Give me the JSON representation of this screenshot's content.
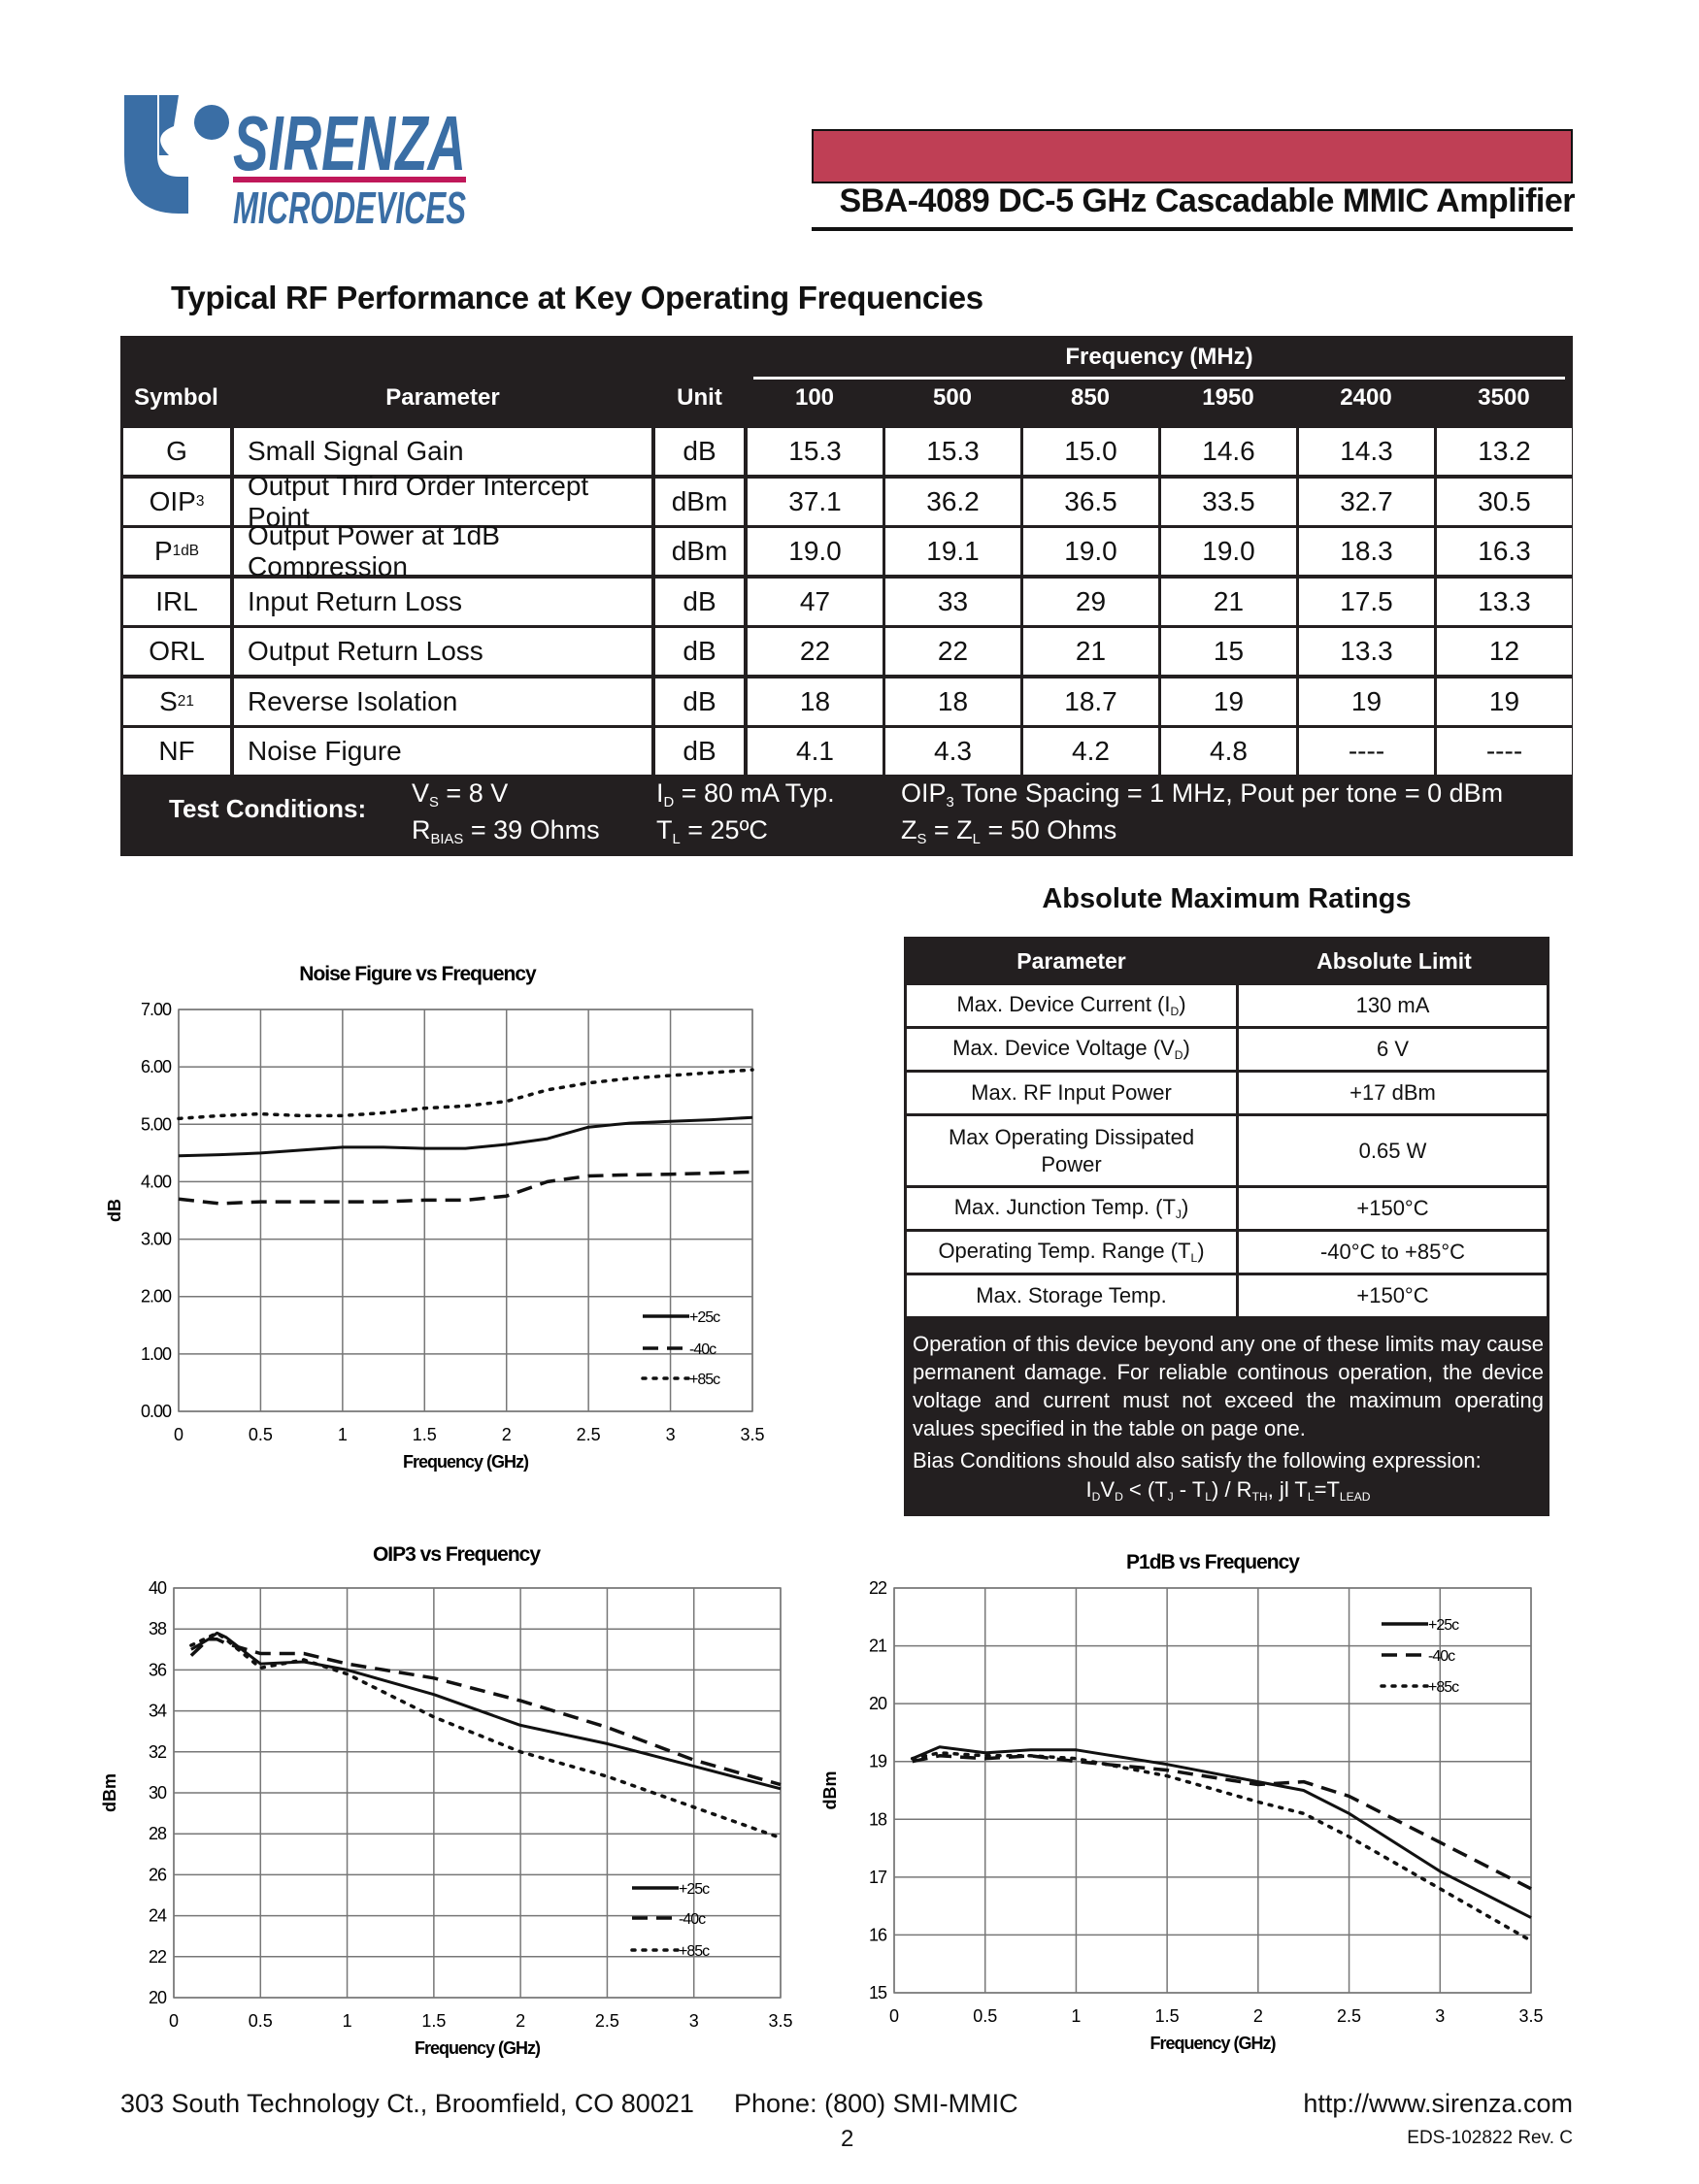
{
  "logo": {
    "line1": "SIRENZA",
    "line2": "MICRODEVICES",
    "colors": {
      "blue": "#3a6ea5",
      "accent": "#c0185a"
    }
  },
  "header": {
    "title": "SBA-4089 DC-5 GHz Cascadable MMIC Amplifier",
    "bar_color": "#bf3f55"
  },
  "rf": {
    "section_title": "Typical RF Performance at Key Operating Frequencies",
    "freq_group": "Frequency (MHz)",
    "headers": {
      "symbol": "Symbol",
      "parameter": "Parameter",
      "unit": "Unit"
    },
    "frequencies": [
      "100",
      "500",
      "850",
      "1950",
      "2400",
      "3500"
    ],
    "rows": [
      {
        "sym": "G",
        "sub": "",
        "param": "Small Signal Gain",
        "unit": "dB",
        "values": [
          "15.3",
          "15.3",
          "15.0",
          "14.6",
          "14.3",
          "13.2"
        ]
      },
      {
        "sym": "OIP",
        "sub": "3",
        "param": "Output Third Order Intercept Point",
        "unit": "dBm",
        "values": [
          "37.1",
          "36.2",
          "36.5",
          "33.5",
          "32.7",
          "30.5"
        ]
      },
      {
        "sym": "P",
        "sub": "1dB",
        "param": "Output Power at 1dB Compression",
        "unit": "dBm",
        "values": [
          "19.0",
          "19.1",
          "19.0",
          "19.0",
          "18.3",
          "16.3"
        ]
      },
      {
        "sym": "IRL",
        "sub": "",
        "param": "Input Return Loss",
        "unit": "dB",
        "values": [
          "47",
          "33",
          "29",
          "21",
          "17.5",
          "13.3"
        ]
      },
      {
        "sym": "ORL",
        "sub": "",
        "param": "Output Return Loss",
        "unit": "dB",
        "values": [
          "22",
          "22",
          "21",
          "15",
          "13.3",
          "12"
        ]
      },
      {
        "sym": "S",
        "sub": "21",
        "param": "Reverse Isolation",
        "unit": "dB",
        "values": [
          "18",
          "18",
          "18.7",
          "19",
          "19",
          "19"
        ]
      },
      {
        "sym": "NF",
        "sub": "",
        "param": "Noise Figure",
        "unit": "dB",
        "values": [
          "4.1",
          "4.3",
          "4.2",
          "4.8",
          "----",
          "----"
        ]
      }
    ],
    "test_conditions": {
      "label": "Test Conditions:",
      "items": [
        [
          {
            "t": "V"
          },
          {
            "t": "S",
            "sub": true
          },
          {
            "t": " = 8 V"
          }
        ],
        [
          {
            "t": "R"
          },
          {
            "t": "BIAS",
            "sub": true
          },
          {
            "t": " = 39 Ohms"
          }
        ],
        [
          {
            "t": "I"
          },
          {
            "t": "D",
            "sub": true
          },
          {
            "t": " = 80 mA  Typ."
          }
        ],
        [
          {
            "t": "T"
          },
          {
            "t": "L",
            "sub": true
          },
          {
            "t": " = 25ºC"
          }
        ],
        [
          {
            "t": "OIP"
          },
          {
            "t": "3",
            "sub": true
          },
          {
            "t": " Tone Spacing = 1 MHz,  Pout per tone = 0 dBm"
          }
        ],
        [
          {
            "t": "Z"
          },
          {
            "t": "S",
            "sub": true
          },
          {
            "t": " = Z"
          },
          {
            "t": "L",
            "sub": true
          },
          {
            "t": " = 50 Ohms"
          }
        ]
      ]
    }
  },
  "abs_max": {
    "title": "Absolute Maximum Ratings",
    "headers": [
      "Parameter",
      "Absolute Limit"
    ],
    "rows": [
      {
        "param": [
          {
            "t": "Max. Device Current (I"
          },
          {
            "t": "D",
            "sub": true
          },
          {
            "t": ")"
          }
        ],
        "limit": "130 mA"
      },
      {
        "param": [
          {
            "t": "Max. Device Voltage (V"
          },
          {
            "t": "D",
            "sub": true
          },
          {
            "t": ")"
          }
        ],
        "limit": "6 V"
      },
      {
        "param": [
          {
            "t": "Max. RF Input Power"
          }
        ],
        "limit": "+17 dBm"
      },
      {
        "param": [
          {
            "t": "Max Operating Dissipated Power"
          }
        ],
        "limit": "0.65 W"
      },
      {
        "param": [
          {
            "t": "Max. Junction Temp. (T"
          },
          {
            "t": "J",
            "sub": true
          },
          {
            "t": ")"
          }
        ],
        "limit": "+150°C"
      },
      {
        "param": [
          {
            "t": "Operating Temp. Range (T"
          },
          {
            "t": "L",
            "sub": true
          },
          {
            "t": ")"
          }
        ],
        "limit": "-40°C to +85°C"
      },
      {
        "param": [
          {
            "t": "Max. Storage Temp."
          }
        ],
        "limit": "+150°C"
      }
    ],
    "note": "Operation of this device beyond any one of these limits may cause permanent damage.  For reliable continous operation, the device voltage and current must not exceed the maximum operating values specified in the table on page one.",
    "bias_text": "Bias Conditions should also satisfy the following expression:",
    "bias_expr": [
      {
        "t": "I"
      },
      {
        "t": "D",
        "sub": true
      },
      {
        "t": "V"
      },
      {
        "t": "D",
        "sub": true
      },
      {
        "t": " < (T"
      },
      {
        "t": "J",
        "sub": true
      },
      {
        "t": " - T"
      },
      {
        "t": "L",
        "sub": true
      },
      {
        "t": ") / R"
      },
      {
        "t": "TH",
        "sub": true
      },
      {
        "t": ", jl          T"
      },
      {
        "t": "L",
        "sub": true
      },
      {
        "t": "=T"
      },
      {
        "t": "LEAD",
        "sub": true
      }
    ]
  },
  "chart_data": [
    {
      "id": "nf",
      "type": "line",
      "title": "Noise Figure vs Frequency",
      "xlabel": "Frequency (GHz)",
      "ylabel": "dB",
      "xlim": [
        0,
        3.5
      ],
      "ylim": [
        0,
        7
      ],
      "xticks": [
        "0",
        "0.5",
        "1",
        "1.5",
        "2",
        "2.5",
        "3",
        "3.5"
      ],
      "yticks": [
        "0.00",
        "1.00",
        "2.00",
        "3.00",
        "4.00",
        "5.00",
        "6.00",
        "7.00"
      ],
      "grid": true,
      "legend": "bottom-right",
      "x": [
        0,
        0.25,
        0.5,
        0.75,
        1,
        1.25,
        1.5,
        1.75,
        2,
        2.25,
        2.5,
        2.75,
        3,
        3.25,
        3.5
      ],
      "series": [
        {
          "name": "+25c",
          "style": "solid",
          "values": [
            4.45,
            4.47,
            4.5,
            4.55,
            4.6,
            4.6,
            4.58,
            4.58,
            4.65,
            4.75,
            4.95,
            5.02,
            5.05,
            5.08,
            5.12
          ]
        },
        {
          "name": "-40c",
          "style": "dashed",
          "values": [
            3.7,
            3.62,
            3.65,
            3.65,
            3.65,
            3.65,
            3.68,
            3.68,
            3.75,
            4.0,
            4.1,
            4.12,
            4.13,
            4.15,
            4.17
          ]
        },
        {
          "name": "+85c",
          "style": "dotted",
          "values": [
            5.1,
            5.15,
            5.18,
            5.15,
            5.15,
            5.2,
            5.28,
            5.32,
            5.4,
            5.6,
            5.72,
            5.8,
            5.85,
            5.9,
            5.95
          ]
        }
      ]
    },
    {
      "id": "oip3",
      "type": "line",
      "title": "OIP3 vs Frequency",
      "xlabel": "Frequency (GHz)",
      "ylabel": "dBm",
      "xlim": [
        0,
        3.5
      ],
      "ylim": [
        20,
        40
      ],
      "xticks": [
        "0",
        "0.5",
        "1",
        "1.5",
        "2",
        "2.5",
        "3",
        "3.5"
      ],
      "yticks": [
        "20",
        "22",
        "24",
        "26",
        "28",
        "30",
        "32",
        "34",
        "36",
        "38",
        "40"
      ],
      "grid": true,
      "legend": "bottom-right",
      "x": [
        0.1,
        0.2,
        0.25,
        0.3,
        0.5,
        0.75,
        1,
        1.5,
        2,
        2.5,
        3,
        3.5
      ],
      "series": [
        {
          "name": "+25c",
          "style": "solid",
          "values": [
            37,
            37.5,
            37.8,
            37.6,
            36.3,
            36.4,
            36,
            34.8,
            33.3,
            32.4,
            31.3,
            30.2
          ]
        },
        {
          "name": "-40c",
          "style": "dashed",
          "values": [
            36.7,
            37.5,
            37.5,
            37.3,
            36.8,
            36.8,
            36.3,
            35.6,
            34.5,
            33.2,
            31.6,
            30.4
          ]
        },
        {
          "name": "+85c",
          "style": "dotted",
          "values": [
            37.2,
            37.6,
            37.8,
            37.5,
            36.1,
            36.5,
            35.8,
            33.7,
            32,
            30.8,
            29.3,
            27.8
          ]
        }
      ]
    },
    {
      "id": "p1db",
      "type": "line",
      "title": "P1dB vs Frequency",
      "xlabel": "Frequency (GHz)",
      "ylabel": "dBm",
      "xlim": [
        0,
        3.5
      ],
      "ylim": [
        15,
        22
      ],
      "xticks": [
        "0",
        "0.5",
        "1",
        "1.5",
        "2",
        "2.5",
        "3",
        "3.5"
      ],
      "yticks": [
        "15",
        "16",
        "17",
        "18",
        "19",
        "20",
        "21",
        "22"
      ],
      "grid": true,
      "legend": "top-right",
      "x": [
        0.1,
        0.25,
        0.5,
        0.75,
        1,
        1.5,
        2,
        2.25,
        2.5,
        3,
        3.5
      ],
      "series": [
        {
          "name": "+25c",
          "style": "solid",
          "values": [
            19.05,
            19.25,
            19.15,
            19.2,
            19.2,
            18.95,
            18.65,
            18.5,
            18.1,
            17.1,
            16.3
          ]
        },
        {
          "name": "-40c",
          "style": "dashed",
          "values": [
            19.0,
            19.1,
            19.05,
            19.1,
            19.0,
            18.85,
            18.6,
            18.65,
            18.4,
            17.6,
            16.8
          ]
        },
        {
          "name": "+85c",
          "style": "dotted",
          "values": [
            19.05,
            19.15,
            19.1,
            19.1,
            19.05,
            18.75,
            18.3,
            18.1,
            17.7,
            16.8,
            15.9
          ]
        }
      ]
    }
  ],
  "footer": {
    "address": "303 South Technology Ct., Broomfield, CO 80021",
    "phone": "Phone: (800) SMI-MMIC",
    "url": "http://www.sirenza.com",
    "doc": "EDS-102822  Rev. C",
    "page": "2"
  }
}
